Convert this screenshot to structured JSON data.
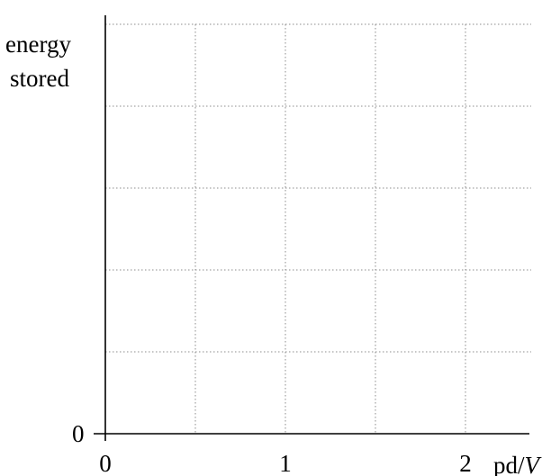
{
  "chart_data": {
    "type": "line",
    "title": "",
    "xlabel": "pd/",
    "xlabel_unit": "V",
    "ylabel_line1": "energy",
    "ylabel_line2": "stored",
    "x_ticks": [
      {
        "value": 0,
        "label": "0"
      },
      {
        "value": 1,
        "label": "1"
      },
      {
        "value": 2,
        "label": "2"
      }
    ],
    "y_ticks": [
      {
        "value": 0,
        "label": "0"
      }
    ],
    "xlim": [
      0,
      2.67
    ],
    "ylim": [
      0,
      5
    ],
    "x_grid_step": 0.5,
    "y_grid_step": 1,
    "grid": true,
    "series": []
  }
}
